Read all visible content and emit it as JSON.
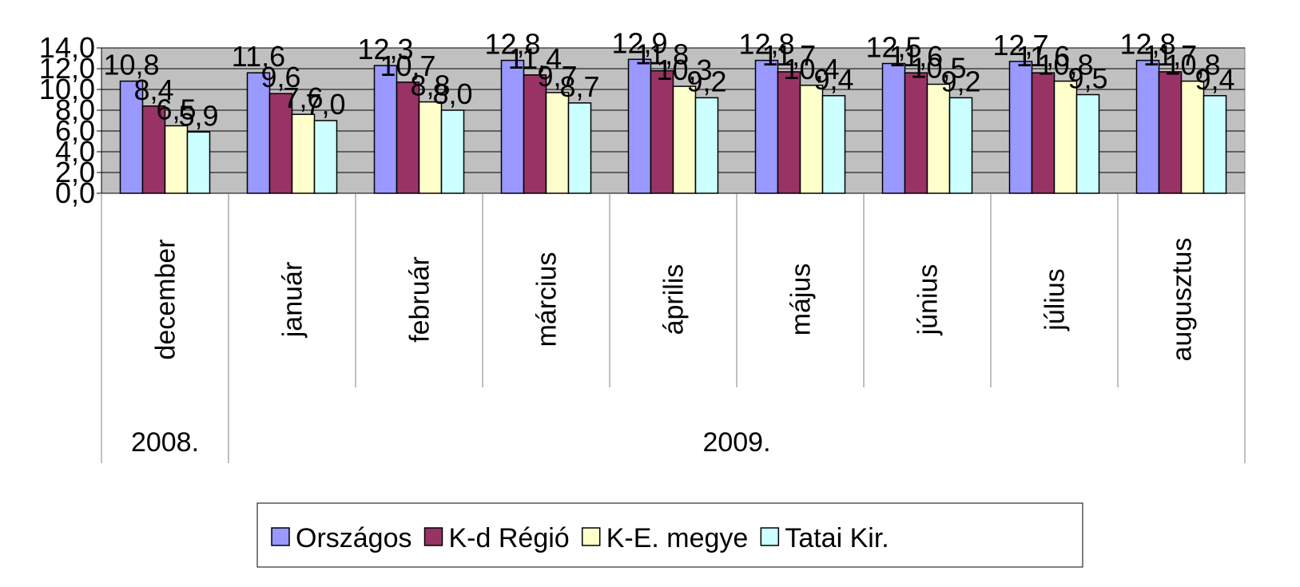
{
  "chart_data": {
    "type": "bar",
    "categories": [
      "december",
      "január",
      "február",
      "március",
      "április",
      "május",
      "június",
      "július",
      "augusztus"
    ],
    "groups": [
      "2008.",
      "2009.",
      null,
      null,
      null,
      null,
      null,
      null,
      null
    ],
    "series": [
      {
        "name": "Országos",
        "color": "#9999ff",
        "values": [
          10.8,
          11.6,
          12.3,
          12.8,
          12.9,
          12.8,
          12.5,
          12.7,
          12.8
        ],
        "value_labels": [
          "10,8",
          "11,6",
          "12,3",
          "12,8",
          "12,9",
          "12,8",
          "12,5",
          "12,7",
          "12,8"
        ]
      },
      {
        "name": "K-d Régió",
        "color": "#993366",
        "values": [
          8.4,
          9.6,
          10.7,
          11.4,
          11.8,
          11.7,
          11.6,
          11.6,
          11.7
        ],
        "value_labels": [
          "8,4",
          "9,6",
          "10,7",
          "11,4",
          "11,8",
          "11,7",
          "11,6",
          "11,6",
          "11,7"
        ]
      },
      {
        "name": "K-E. megye",
        "color": "#ffffcc",
        "values": [
          6.5,
          7.6,
          8.8,
          9.7,
          10.3,
          10.4,
          10.5,
          10.8,
          10.8
        ],
        "value_labels": [
          "6,5",
          "7,6",
          "8,8",
          "9,7",
          "10,3",
          "10,4",
          "10,5",
          "10,8",
          "10,8"
        ]
      },
      {
        "name": "Tatai Kir.",
        "color": "#ccffff",
        "values": [
          5.9,
          7.0,
          8.0,
          8.7,
          9.2,
          9.4,
          9.2,
          9.5,
          9.4
        ],
        "value_labels": [
          "5,9",
          "7,0",
          "8,0",
          "8,7",
          "9,2",
          "9,4",
          "9,2",
          "9,5",
          "9,4"
        ]
      }
    ],
    "ylim": [
      0,
      14
    ],
    "yticks": [
      {
        "value": 0,
        "label": "0,0"
      },
      {
        "value": 2,
        "label": "2,0"
      },
      {
        "value": 4,
        "label": "4,0"
      },
      {
        "value": 6,
        "label": "6,0"
      },
      {
        "value": 8,
        "label": "8,0"
      },
      {
        "value": 10,
        "label": "10,0"
      },
      {
        "value": 12,
        "label": "12,0"
      },
      {
        "value": 14,
        "label": "14,0"
      }
    ],
    "plot_background": "#c0c0c0",
    "legend": "bottom"
  }
}
